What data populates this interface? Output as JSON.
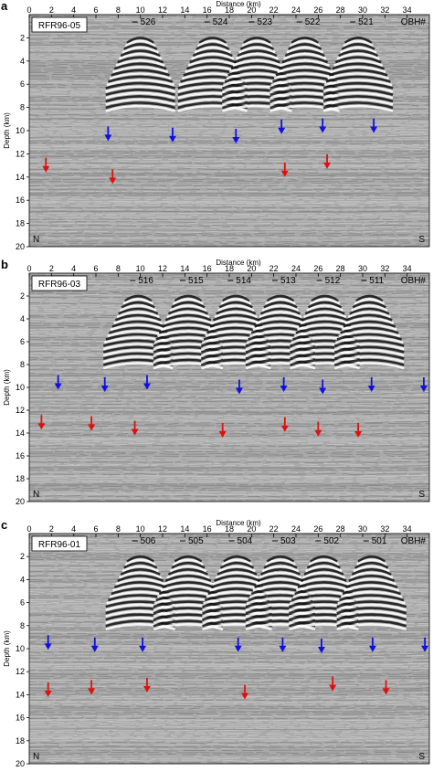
{
  "x_axis_title": "Distance (km)",
  "y_axis_title": "Depth (km)",
  "obh_label": "OBH#",
  "north_label": "N",
  "south_label": "S",
  "x_ticks": [
    0,
    2,
    4,
    6,
    8,
    10,
    12,
    14,
    16,
    18,
    20,
    22,
    24,
    26,
    28,
    30,
    32,
    34
  ],
  "y_ticks": [
    2,
    4,
    6,
    8,
    10,
    12,
    14,
    16,
    18,
    20
  ],
  "x_range_km": [
    0,
    36
  ],
  "y_range_km": [
    0,
    20
  ],
  "colors": {
    "blue_arrow": "#1010e0",
    "red_arrow": "#e01010",
    "background": "#a9a9a9"
  },
  "panels": [
    {
      "letter": "a",
      "profile": "RFR96-05",
      "obh": [
        {
          "label": "526",
          "x_km": 10.0
        },
        {
          "label": "524",
          "x_km": 16.5
        },
        {
          "label": "523",
          "x_km": 20.5
        },
        {
          "label": "522",
          "x_km": 24.8
        },
        {
          "label": "521",
          "x_km": 29.6
        }
      ],
      "arrows": [
        {
          "color": "blue",
          "x_km": 7.1,
          "y_km": 10.9
        },
        {
          "color": "blue",
          "x_km": 12.9,
          "y_km": 11.0
        },
        {
          "color": "blue",
          "x_km": 18.6,
          "y_km": 11.1
        },
        {
          "color": "blue",
          "x_km": 22.7,
          "y_km": 10.3
        },
        {
          "color": "blue",
          "x_km": 26.4,
          "y_km": 10.2
        },
        {
          "color": "blue",
          "x_km": 31.0,
          "y_km": 10.2
        },
        {
          "color": "red",
          "x_km": 1.5,
          "y_km": 13.6
        },
        {
          "color": "red",
          "x_km": 7.5,
          "y_km": 14.6
        },
        {
          "color": "red",
          "x_km": 23.0,
          "y_km": 14.0
        },
        {
          "color": "red",
          "x_km": 26.8,
          "y_km": 13.3
        }
      ]
    },
    {
      "letter": "b",
      "profile": "RFR96-03",
      "obh": [
        {
          "label": "516",
          "x_km": 9.8
        },
        {
          "label": "515",
          "x_km": 14.3
        },
        {
          "label": "514",
          "x_km": 18.6
        },
        {
          "label": "513",
          "x_km": 22.6
        },
        {
          "label": "512",
          "x_km": 26.6
        },
        {
          "label": "511",
          "x_km": 30.6
        }
      ],
      "arrows": [
        {
          "color": "blue",
          "x_km": 2.6,
          "y_km": 10.2
        },
        {
          "color": "blue",
          "x_km": 6.8,
          "y_km": 10.4
        },
        {
          "color": "blue",
          "x_km": 10.6,
          "y_km": 10.2
        },
        {
          "color": "blue",
          "x_km": 18.9,
          "y_km": 10.6
        },
        {
          "color": "blue",
          "x_km": 22.9,
          "y_km": 10.4
        },
        {
          "color": "blue",
          "x_km": 26.4,
          "y_km": 10.6
        },
        {
          "color": "blue",
          "x_km": 30.8,
          "y_km": 10.4
        },
        {
          "color": "blue",
          "x_km": 35.5,
          "y_km": 10.4
        },
        {
          "color": "red",
          "x_km": 1.1,
          "y_km": 13.7
        },
        {
          "color": "red",
          "x_km": 5.6,
          "y_km": 13.8
        },
        {
          "color": "red",
          "x_km": 9.5,
          "y_km": 14.2
        },
        {
          "color": "red",
          "x_km": 17.4,
          "y_km": 14.4
        },
        {
          "color": "red",
          "x_km": 23.0,
          "y_km": 13.9
        },
        {
          "color": "red",
          "x_km": 26.0,
          "y_km": 14.3
        },
        {
          "color": "red",
          "x_km": 29.6,
          "y_km": 14.4
        }
      ]
    },
    {
      "letter": "c",
      "profile": "RFR96-01",
      "obh": [
        {
          "label": "506",
          "x_km": 10.0
        },
        {
          "label": "505",
          "x_km": 14.3
        },
        {
          "label": "504",
          "x_km": 18.7
        },
        {
          "label": "503",
          "x_km": 22.6
        },
        {
          "label": "502",
          "x_km": 26.5
        },
        {
          "label": "501",
          "x_km": 30.8
        }
      ],
      "arrows": [
        {
          "color": "blue",
          "x_km": 1.7,
          "y_km": 10.1
        },
        {
          "color": "blue",
          "x_km": 5.9,
          "y_km": 10.3
        },
        {
          "color": "blue",
          "x_km": 10.2,
          "y_km": 10.3
        },
        {
          "color": "blue",
          "x_km": 18.8,
          "y_km": 10.3
        },
        {
          "color": "blue",
          "x_km": 22.8,
          "y_km": 10.3
        },
        {
          "color": "blue",
          "x_km": 26.3,
          "y_km": 10.4
        },
        {
          "color": "blue",
          "x_km": 30.9,
          "y_km": 10.3
        },
        {
          "color": "blue",
          "x_km": 35.6,
          "y_km": 10.3
        },
        {
          "color": "red",
          "x_km": 1.7,
          "y_km": 14.2
        },
        {
          "color": "red",
          "x_km": 5.6,
          "y_km": 14.0
        },
        {
          "color": "red",
          "x_km": 10.6,
          "y_km": 13.8
        },
        {
          "color": "red",
          "x_km": 19.4,
          "y_km": 14.4
        },
        {
          "color": "red",
          "x_km": 27.3,
          "y_km": 13.7
        },
        {
          "color": "red",
          "x_km": 32.1,
          "y_km": 14.0
        }
      ]
    }
  ]
}
